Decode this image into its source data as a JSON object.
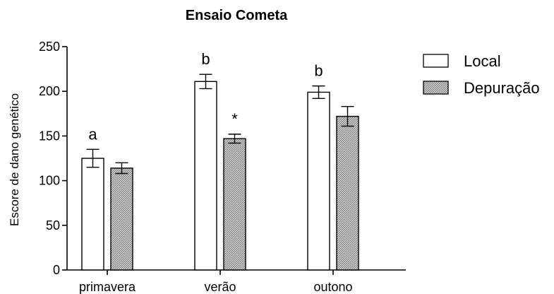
{
  "chart_data": {
    "type": "bar",
    "title": "Ensaio Cometa",
    "xlabel": "",
    "ylabel": "Escore de dano genético",
    "ylim": [
      0,
      250
    ],
    "yticks": [
      0,
      50,
      100,
      150,
      200,
      250
    ],
    "categories": [
      "primavera",
      "verão",
      "outono"
    ],
    "series": [
      {
        "name": "Local",
        "fill": "#ffffff",
        "pattern": "none",
        "values": [
          125,
          211,
          199
        ],
        "errors": [
          10,
          8,
          7
        ],
        "annotations": [
          "a",
          "b",
          "b"
        ]
      },
      {
        "name": "Depuração",
        "fill": "#bdbdbd",
        "pattern": "dense-hatch",
        "values": [
          114,
          147,
          172
        ],
        "errors": [
          6,
          5,
          11
        ],
        "annotations": [
          "",
          "*",
          ""
        ]
      }
    ],
    "legend": {
      "placement": "top-right"
    },
    "grid": false,
    "error_bars": true
  }
}
